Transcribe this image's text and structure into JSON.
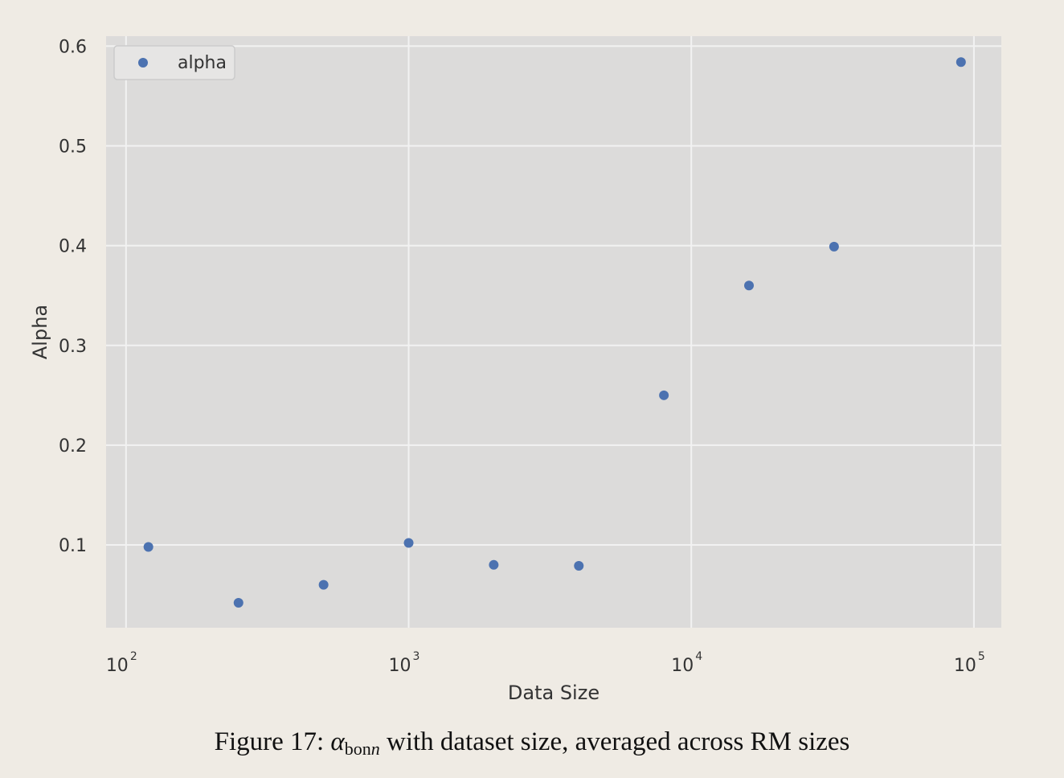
{
  "chart_data": {
    "type": "scatter",
    "xscale": "log",
    "xlim": [
      85,
      125000
    ],
    "ylim": [
      0.017,
      0.61
    ],
    "xticks": [
      {
        "value": 100,
        "base": "10",
        "exp": "2"
      },
      {
        "value": 1000,
        "base": "10",
        "exp": "3"
      },
      {
        "value": 10000,
        "base": "10",
        "exp": "4"
      },
      {
        "value": 100000,
        "base": "10",
        "exp": "5"
      }
    ],
    "yticks": [
      {
        "value": 0.1,
        "label": "0.1"
      },
      {
        "value": 0.2,
        "label": "0.2"
      },
      {
        "value": 0.3,
        "label": "0.3"
      },
      {
        "value": 0.4,
        "label": "0.4"
      },
      {
        "value": 0.5,
        "label": "0.5"
      },
      {
        "value": 0.6,
        "label": "0.6"
      }
    ],
    "xlabel": "Data Size",
    "ylabel": "Alpha",
    "grid": true,
    "legend_position": "top-left",
    "series": [
      {
        "name": "alpha",
        "color": "#4c72b0",
        "points": [
          {
            "x": 120,
            "y": 0.098
          },
          {
            "x": 250,
            "y": 0.042
          },
          {
            "x": 500,
            "y": 0.06
          },
          {
            "x": 1000,
            "y": 0.102
          },
          {
            "x": 2000,
            "y": 0.08
          },
          {
            "x": 4000,
            "y": 0.079
          },
          {
            "x": 8000,
            "y": 0.25
          },
          {
            "x": 16000,
            "y": 0.36
          },
          {
            "x": 32000,
            "y": 0.399
          },
          {
            "x": 90000,
            "y": 0.584
          }
        ]
      }
    ]
  },
  "caption": {
    "prefix": "Figure 17: ",
    "symbol": "α",
    "subscript": "bon",
    "subscript_var": "n",
    "suffix": " with dataset size, averaged across RM sizes"
  },
  "colors": {
    "background": "#efebe4",
    "plot_area": "#dcdbda",
    "grid": "#f2f2f2",
    "marker": "#4c72b0"
  }
}
